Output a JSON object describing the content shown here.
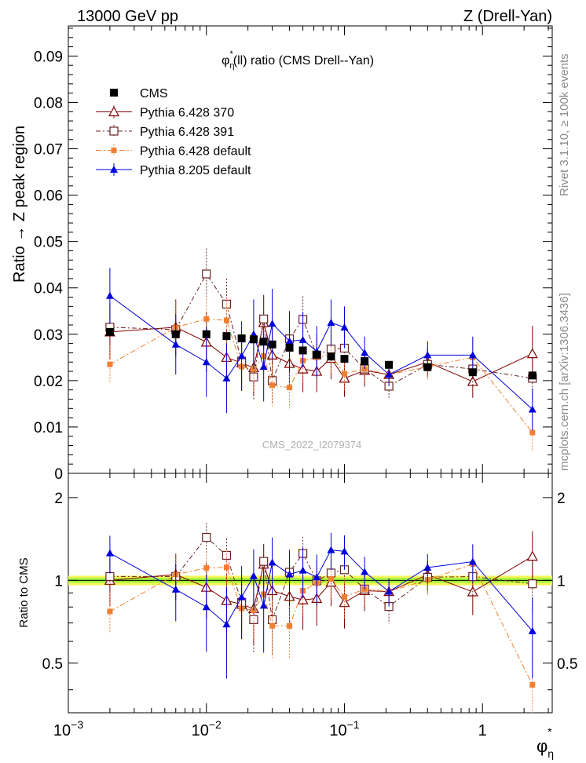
{
  "header": {
    "left": "13000 GeV pp",
    "right": "Z (Drell-Yan)",
    "side_top": "Rivet 3.1.10, ≥ 100k events",
    "side_bottom": "mcplots.cern.ch [arXiv:1306.3436]",
    "watermark": "CMS_2022_I2079374"
  },
  "chart_data": {
    "type": "scatter",
    "title": "φη*(ll) ratio (CMS Drell--Yan)",
    "title_parts": {
      "phi": "φ",
      "sub": "η",
      "sup": "*",
      "rest": "(ll) ratio (CMS Drell--Yan)"
    },
    "xlabel": {
      "phi": "φ",
      "sub": "η",
      "sup": "*"
    },
    "ylabel": "Ratio → Z peak region",
    "ratio_ylabel": "Ratio to CMS",
    "xscale": "log",
    "xlim": [
      0.001,
      3.2
    ],
    "ylim": [
      0,
      0.0965
    ],
    "ratio_ylim": [
      0.33,
      2.45
    ],
    "x_ticks": [
      {
        "value": 0.001,
        "base": "10",
        "exp": "−3"
      },
      {
        "value": 0.01,
        "base": "10",
        "exp": "−2"
      },
      {
        "value": 0.1,
        "base": "10",
        "exp": "−1"
      },
      {
        "value": 1,
        "base": "1",
        "exp": ""
      }
    ],
    "y_ticks": [
      {
        "value": 0,
        "label": "0"
      },
      {
        "value": 0.01,
        "label": "0.01"
      },
      {
        "value": 0.02,
        "label": "0.02"
      },
      {
        "value": 0.03,
        "label": "0.03"
      },
      {
        "value": 0.04,
        "label": "0.04"
      },
      {
        "value": 0.05,
        "label": "0.05"
      },
      {
        "value": 0.06,
        "label": "0.06"
      },
      {
        "value": 0.07,
        "label": "0.07"
      },
      {
        "value": 0.08,
        "label": "0.08"
      },
      {
        "value": 0.09,
        "label": "0.09"
      }
    ],
    "ratio_y_ticks": [
      {
        "value": 0.5,
        "label": "0.5"
      },
      {
        "value": 1,
        "label": "1"
      },
      {
        "value": 2,
        "label": "2"
      }
    ],
    "legend_position": "top-left",
    "x": [
      0.002,
      0.006,
      0.01,
      0.014,
      0.018,
      0.022,
      0.026,
      0.03,
      0.04,
      0.05,
      0.063,
      0.08,
      0.1,
      0.14,
      0.21,
      0.4,
      0.85,
      2.3
    ],
    "series": [
      {
        "name": "CMS",
        "color": "#000000",
        "marker": "square-filled",
        "dash": "",
        "values": [
          0.0305,
          0.03,
          0.03,
          0.0296,
          0.0291,
          0.0289,
          0.0284,
          0.0278,
          0.0271,
          0.0265,
          0.0256,
          0.0252,
          0.0247,
          0.0242,
          0.0234,
          0.0229,
          0.0218,
          0.0211
        ],
        "errors": [
          0.0004,
          0.0004,
          0.0004,
          0.0004,
          0.0004,
          0.0004,
          0.0004,
          0.0004,
          0.0004,
          0.0004,
          0.0004,
          0.0004,
          0.0004,
          0.0004,
          0.0004,
          0.0004,
          0.0004,
          0.0004
        ]
      },
      {
        "name": "Pythia 6.428 370",
        "color": "#800000",
        "marker": "triangle-open",
        "dash": "",
        "values": [
          0.0305,
          0.0315,
          0.0283,
          0.025,
          0.0238,
          0.0228,
          0.0325,
          0.0255,
          0.0237,
          0.0225,
          0.022,
          0.0248,
          0.0205,
          0.0222,
          0.0213,
          0.024,
          0.0198,
          0.0258
        ],
        "errors": [
          0.006,
          0.006,
          0.0065,
          0.006,
          0.006,
          0.006,
          0.006,
          0.006,
          0.0055,
          0.005,
          0.0045,
          0.0045,
          0.004,
          0.0035,
          0.0025,
          0.003,
          0.0035,
          0.006
        ]
      },
      {
        "name": "Pythia 6.428 391",
        "color": "#6b2323",
        "marker": "square-open",
        "dash": "6,3,2,3",
        "values": [
          0.0315,
          0.031,
          0.043,
          0.0365,
          0.0242,
          0.0208,
          0.0333,
          0.02,
          0.029,
          0.0332,
          0.0255,
          0.0268,
          0.027,
          0.0225,
          0.0188,
          0.0235,
          0.0225,
          0.0205
        ],
        "errors": [
          0.006,
          0.006,
          0.0055,
          0.0055,
          0.0055,
          0.005,
          0.005,
          0.005,
          0.005,
          0.005,
          0.0045,
          0.0045,
          0.004,
          0.0035,
          0.0025,
          0.003,
          0.0035,
          0.0045
        ]
      },
      {
        "name": "Pythia 6.428 default",
        "color": "#f08030",
        "marker": "square-filled",
        "dash": "7,3,2,3",
        "values": [
          0.0235,
          0.0315,
          0.0333,
          0.033,
          0.023,
          0.0225,
          0.0253,
          0.019,
          0.0185,
          0.0243,
          0.025,
          0.0255,
          0.0215,
          0.0225,
          0.0213,
          0.023,
          0.025,
          0.0088
        ],
        "errors": [
          0.004,
          0.0055,
          0.005,
          0.005,
          0.005,
          0.005,
          0.005,
          0.0045,
          0.0045,
          0.0045,
          0.004,
          0.004,
          0.0035,
          0.003,
          0.0025,
          0.003,
          0.004,
          0.004
        ]
      },
      {
        "name": "Pythia 8.205 default",
        "color": "#0000dd",
        "marker": "triangle-filled",
        "dash": "",
        "values": [
          0.0383,
          0.0278,
          0.024,
          0.0205,
          0.0253,
          0.03,
          0.023,
          0.0323,
          0.0285,
          0.0288,
          0.0263,
          0.0325,
          0.0315,
          0.026,
          0.0213,
          0.0255,
          0.0255,
          0.0138
        ],
        "errors": [
          0.006,
          0.0065,
          0.0075,
          0.0075,
          0.0075,
          0.0075,
          0.0075,
          0.0075,
          0.0065,
          0.006,
          0.0055,
          0.005,
          0.0045,
          0.0035,
          0.0025,
          0.003,
          0.004,
          0.0045
        ]
      }
    ],
    "ratio_band": {
      "inner": [
        0.98,
        1.02
      ],
      "outer": [
        0.96,
        1.04
      ],
      "inner_color": "#9ef33c",
      "outer_color": "#f5f55a"
    }
  }
}
